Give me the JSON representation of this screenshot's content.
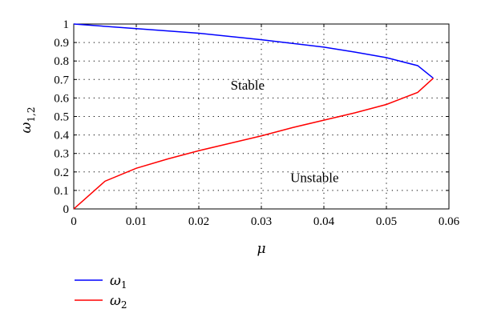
{
  "chart_data": {
    "type": "line",
    "xlabel": "μ",
    "ylabel_main": "ω",
    "ylabel_sub": "1,2",
    "xlim": [
      0,
      0.06
    ],
    "ylim": [
      0,
      1
    ],
    "xticks": [
      0,
      0.01,
      0.02,
      0.03,
      0.04,
      0.05,
      0.06
    ],
    "xtick_labels": [
      "0",
      "0.01",
      "0.02",
      "0.03",
      "0.04",
      "0.05",
      "0.06"
    ],
    "yticks": [
      0,
      0.1,
      0.2,
      0.3,
      0.4,
      0.5,
      0.6,
      0.7,
      0.8,
      0.9,
      1
    ],
    "ytick_labels": [
      "0",
      "0.1",
      "0.2",
      "0.3",
      "0.4",
      "0.5",
      "0.6",
      "0.7",
      "0.8",
      "0.9",
      "1"
    ],
    "grid": "dotted",
    "series": [
      {
        "name": "ω",
        "name_sub": "1",
        "color": "#0000ff",
        "x": [
          0,
          0.01,
          0.02,
          0.03,
          0.04,
          0.045,
          0.05,
          0.055,
          0.0575
        ],
        "y": [
          1,
          0.975,
          0.95,
          0.915,
          0.875,
          0.848,
          0.818,
          0.775,
          0.707
        ]
      },
      {
        "name": "ω",
        "name_sub": "2",
        "color": "#ff0000",
        "x": [
          0,
          0.005,
          0.01,
          0.015,
          0.02,
          0.025,
          0.03,
          0.035,
          0.04,
          0.045,
          0.05,
          0.055,
          0.0575
        ],
        "y": [
          0,
          0.15,
          0.22,
          0.27,
          0.315,
          0.355,
          0.395,
          0.44,
          0.48,
          0.52,
          0.565,
          0.63,
          0.707
        ]
      }
    ],
    "annotations": [
      {
        "text": "Stable",
        "x": 0.0278,
        "y": 0.645
      },
      {
        "text": "Unstable",
        "x": 0.0385,
        "y": 0.145
      }
    ],
    "legend_placement": "below-left"
  }
}
